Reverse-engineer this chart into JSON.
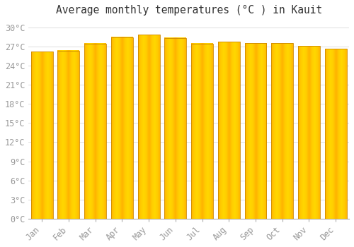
{
  "title": "Average monthly temperatures (°C ) in Kauit",
  "months": [
    "Jan",
    "Feb",
    "Mar",
    "Apr",
    "May",
    "Jun",
    "Jul",
    "Aug",
    "Sep",
    "Oct",
    "Nov",
    "Dec"
  ],
  "temperatures": [
    26.2,
    26.4,
    27.5,
    28.5,
    28.9,
    28.4,
    27.5,
    27.8,
    27.6,
    27.6,
    27.1,
    26.7
  ],
  "bar_color": "#FFA500",
  "bar_edge_color": "#CC7700",
  "background_color": "#FFFFFF",
  "grid_color": "#DDDDDD",
  "ylim": [
    0,
    31
  ],
  "yticks": [
    0,
    3,
    6,
    9,
    12,
    15,
    18,
    21,
    24,
    27,
    30
  ],
  "ytick_labels": [
    "0°C",
    "3°C",
    "6°C",
    "9°C",
    "12°C",
    "15°C",
    "18°C",
    "21°C",
    "24°C",
    "27°C",
    "30°C"
  ],
  "title_fontsize": 10.5,
  "tick_fontsize": 8.5,
  "font_family": "monospace",
  "tick_color": "#999999",
  "bar_width": 0.82
}
